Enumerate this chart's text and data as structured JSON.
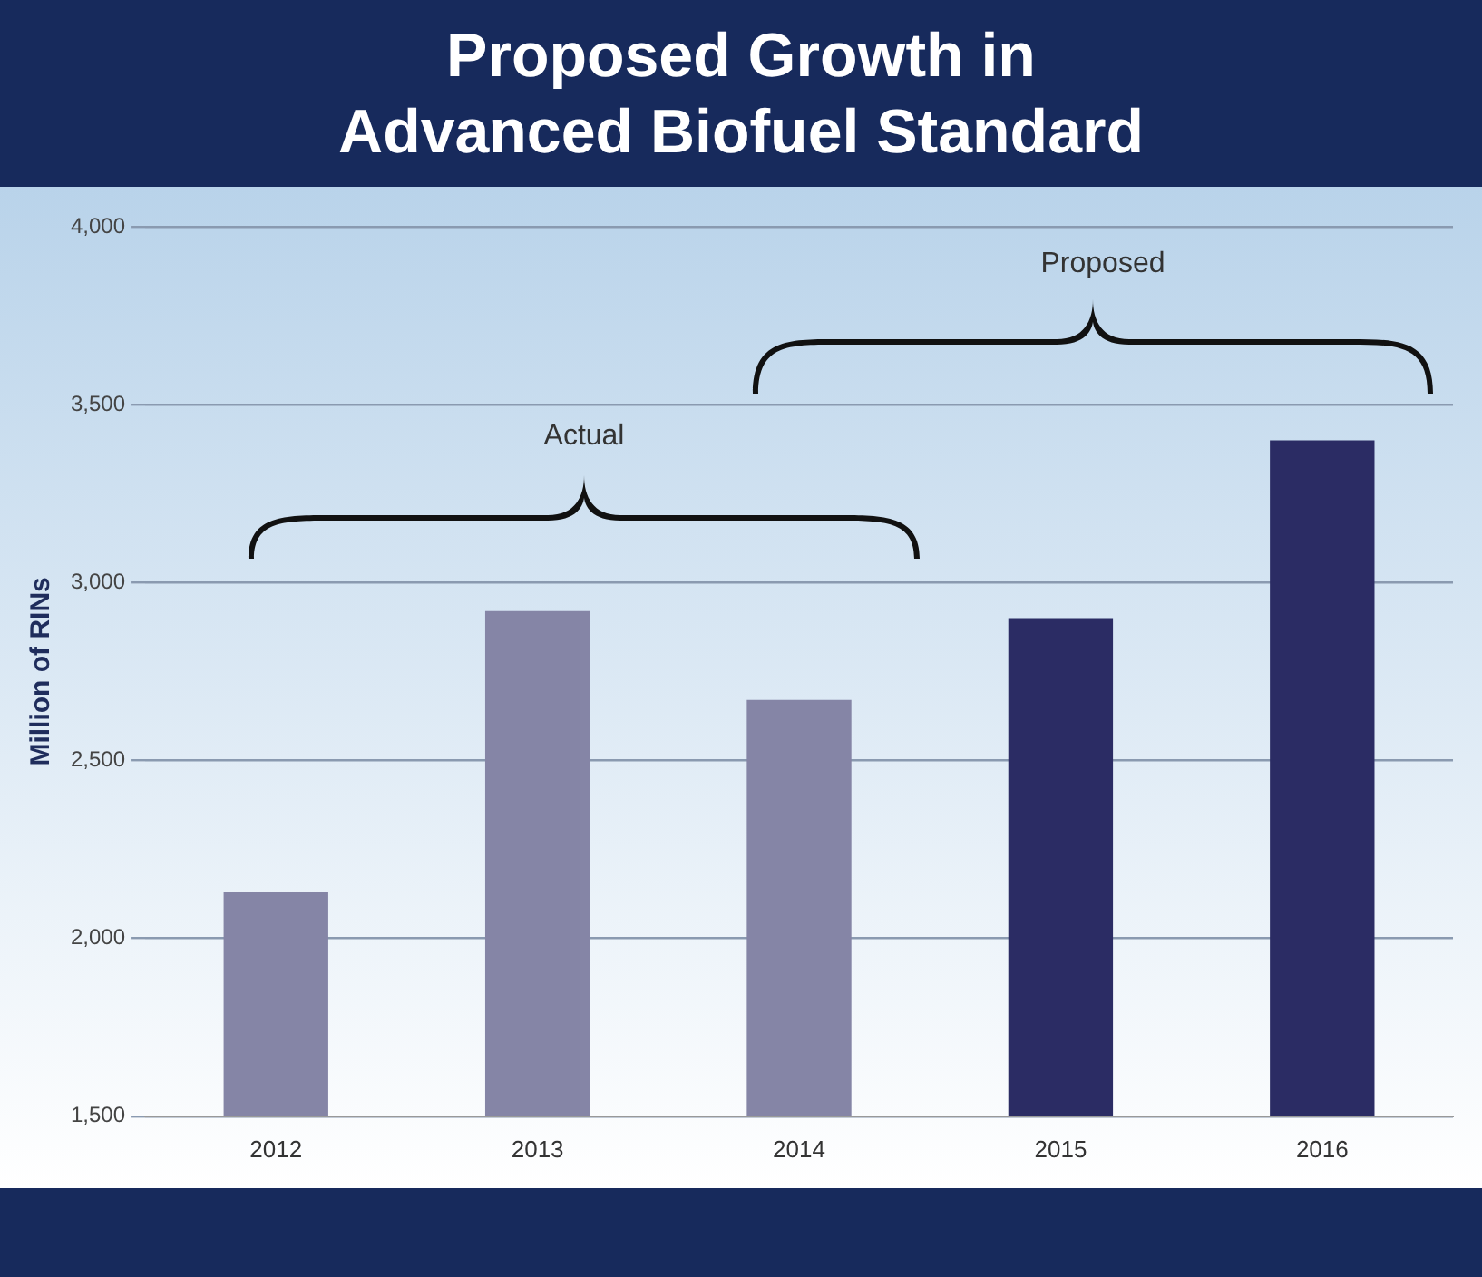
{
  "chart_data": {
    "type": "bar",
    "title": "Proposed Growth in Advanced Biofuel Standard",
    "ylabel": "Million of RINs",
    "categories": [
      "2012",
      "2013",
      "2014",
      "2015",
      "2016"
    ],
    "values": [
      2130,
      2920,
      2670,
      2900,
      3400
    ],
    "colors": [
      "#8585a6",
      "#8585a6",
      "#8585a6",
      "#2b2c64",
      "#2b2c64"
    ],
    "ylim": [
      1500,
      4000
    ],
    "yticks": [
      {
        "value": 1500,
        "label": "1,500"
      },
      {
        "value": 2000,
        "label": "2,000"
      },
      {
        "value": 2500,
        "label": "2,500"
      },
      {
        "value": 3000,
        "label": "3,000"
      },
      {
        "value": 3500,
        "label": "3,500"
      },
      {
        "value": 4000,
        "label": "4,000"
      }
    ],
    "grid": "y",
    "legend": false,
    "annotations": [
      "Actual",
      "Proposed"
    ]
  }
}
